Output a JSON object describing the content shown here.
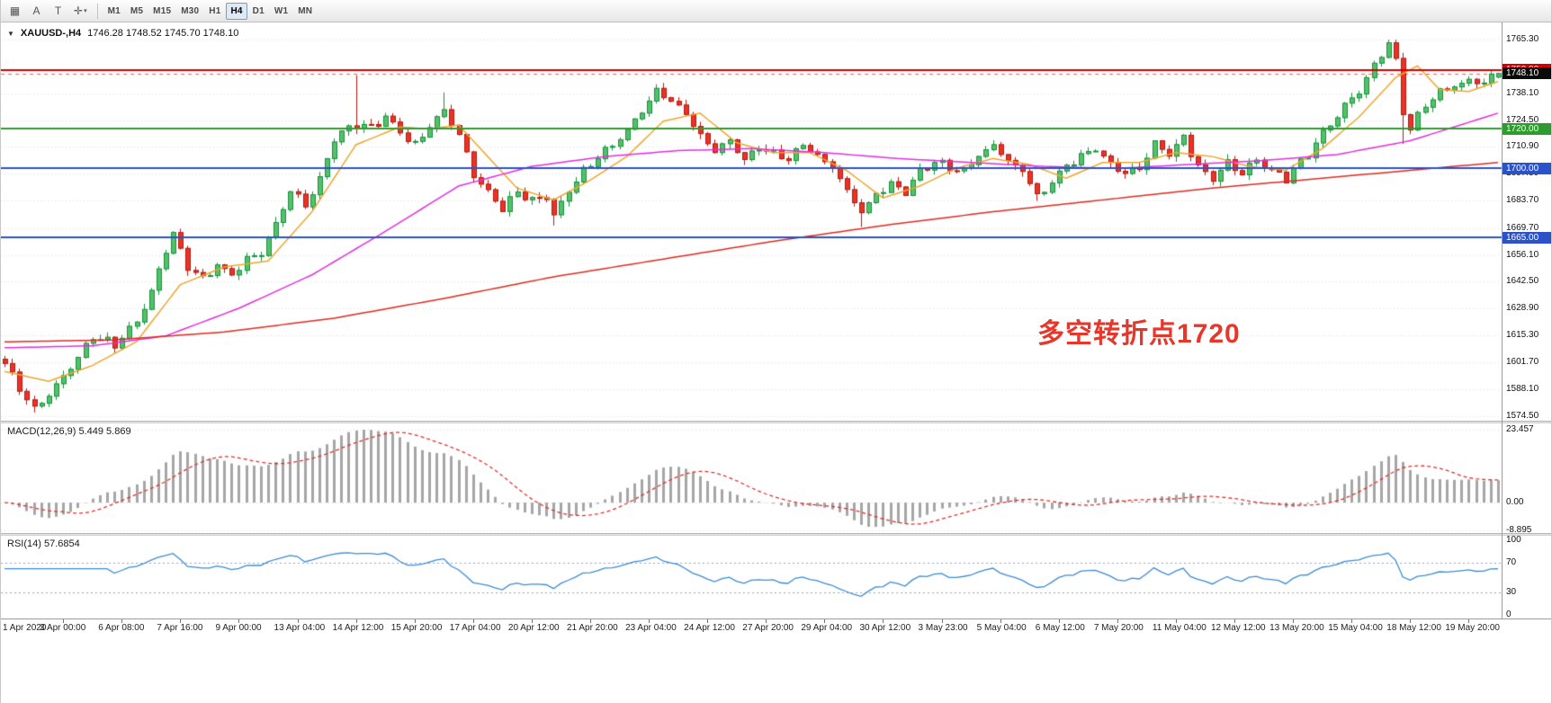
{
  "glyphs": {
    "symbol_dropdown": "▼"
  },
  "toolbar": {
    "left_icons": [
      {
        "name": "chart-grid-icon",
        "glyph": "▦"
      },
      {
        "name": "annotate-a-icon",
        "glyph": "A"
      },
      {
        "name": "text-label-icon",
        "glyph": "T"
      },
      {
        "name": "crosshair-icon",
        "glyph": "✛",
        "caret": "▾"
      }
    ],
    "timeframes": [
      {
        "label": "M1",
        "active": false
      },
      {
        "label": "M5",
        "active": false
      },
      {
        "label": "M15",
        "active": false
      },
      {
        "label": "M30",
        "active": false
      },
      {
        "label": "H1",
        "active": false
      },
      {
        "label": "H4",
        "active": true
      },
      {
        "label": "D1",
        "active": false
      },
      {
        "label": "W1",
        "active": false
      },
      {
        "label": "MN",
        "active": false
      }
    ]
  },
  "chart_data": {
    "type": "candlestick",
    "symbol": "XAUUSD-",
    "timeframe": "H4",
    "title_symbol": "XAUUSD-,H4",
    "title_ohlc": "1746.28 1748.52 1745.70 1748.10",
    "current_ohlc": {
      "open": 1746.28,
      "high": 1748.52,
      "low": 1745.7,
      "close": 1748.1
    },
    "num_candles": 205,
    "price_axis": {
      "min": 1572,
      "max": 1774,
      "ticks": [
        {
          "text": "1765.30",
          "value": 1765.3
        },
        {
          "text": "1738.10",
          "value": 1738.1
        },
        {
          "text": "1724.50",
          "value": 1724.5
        },
        {
          "text": "1710.90",
          "value": 1710.9
        },
        {
          "text": "1697.30",
          "value": 1697.3
        },
        {
          "text": "1683.70",
          "value": 1683.7
        },
        {
          "text": "1669.70",
          "value": 1669.7
        },
        {
          "text": "1656.10",
          "value": 1656.1
        },
        {
          "text": "1642.50",
          "value": 1642.5
        },
        {
          "text": "1628.90",
          "value": 1628.9
        },
        {
          "text": "1615.30",
          "value": 1615.3
        },
        {
          "text": "1601.70",
          "value": 1601.7
        },
        {
          "text": "1588.10",
          "value": 1588.1
        },
        {
          "text": "1574.50",
          "value": 1574.5
        }
      ]
    },
    "x_labels": [
      "1 Apr 2020",
      "3 Apr 00:00",
      "6 Apr 08:00",
      "7 Apr 16:00",
      "9 Apr 00:00",
      "13 Apr 04:00",
      "14 Apr 12:00",
      "15 Apr 20:00",
      "17 Apr 04:00",
      "20 Apr 12:00",
      "21 Apr 20:00",
      "23 Apr 04:00",
      "24 Apr 12:00",
      "27 Apr 20:00",
      "29 Apr 04:00",
      "30 Apr 12:00",
      "3 May 23:00",
      "5 May 04:00",
      "6 May 12:00",
      "7 May 20:00",
      "11 May 04:00",
      "12 May 12:00",
      "13 May 20:00",
      "15 May 04:00",
      "18 May 12:00",
      "19 May 20:00"
    ],
    "close_anchors": [
      [
        0,
        1601
      ],
      [
        2,
        1589
      ],
      [
        4,
        1578
      ],
      [
        6,
        1586
      ],
      [
        9,
        1599
      ],
      [
        12,
        1614
      ],
      [
        15,
        1611
      ],
      [
        18,
        1622
      ],
      [
        20,
        1637
      ],
      [
        22,
        1659
      ],
      [
        23,
        1666
      ],
      [
        25,
        1650
      ],
      [
        27,
        1643
      ],
      [
        29,
        1651
      ],
      [
        31,
        1646
      ],
      [
        33,
        1653
      ],
      [
        35,
        1657
      ],
      [
        37,
        1671
      ],
      [
        39,
        1688
      ],
      [
        41,
        1682
      ],
      [
        43,
        1695
      ],
      [
        45,
        1714
      ],
      [
        47,
        1721
      ],
      [
        48,
        1723
      ],
      [
        50,
        1720
      ],
      [
        52,
        1727
      ],
      [
        54,
        1719
      ],
      [
        56,
        1711
      ],
      [
        58,
        1722
      ],
      [
        60,
        1730
      ],
      [
        62,
        1716
      ],
      [
        64,
        1697
      ],
      [
        66,
        1687
      ],
      [
        68,
        1680
      ],
      [
        70,
        1688
      ],
      [
        72,
        1683
      ],
      [
        74,
        1686
      ],
      [
        75,
        1677
      ],
      [
        77,
        1689
      ],
      [
        79,
        1700
      ],
      [
        81,
        1705
      ],
      [
        83,
        1711
      ],
      [
        85,
        1719
      ],
      [
        87,
        1729
      ],
      [
        89,
        1739
      ],
      [
        91,
        1734
      ],
      [
        93,
        1727
      ],
      [
        95,
        1716
      ],
      [
        97,
        1709
      ],
      [
        99,
        1713
      ],
      [
        101,
        1705
      ],
      [
        103,
        1711
      ],
      [
        105,
        1707
      ],
      [
        107,
        1705
      ],
      [
        109,
        1712
      ],
      [
        111,
        1706
      ],
      [
        113,
        1701
      ],
      [
        115,
        1689
      ],
      [
        117,
        1677
      ],
      [
        119,
        1687
      ],
      [
        121,
        1693
      ],
      [
        123,
        1689
      ],
      [
        125,
        1698
      ],
      [
        127,
        1704
      ],
      [
        129,
        1700
      ],
      [
        131,
        1698
      ],
      [
        133,
        1707
      ],
      [
        135,
        1711
      ],
      [
        137,
        1704
      ],
      [
        139,
        1699
      ],
      [
        141,
        1686
      ],
      [
        143,
        1693
      ],
      [
        145,
        1701
      ],
      [
        147,
        1707
      ],
      [
        149,
        1711
      ],
      [
        151,
        1702
      ],
      [
        153,
        1697
      ],
      [
        155,
        1701
      ],
      [
        157,
        1713
      ],
      [
        159,
        1707
      ],
      [
        161,
        1716
      ],
      [
        163,
        1700
      ],
      [
        165,
        1695
      ],
      [
        167,
        1703
      ],
      [
        169,
        1698
      ],
      [
        171,
        1705
      ],
      [
        173,
        1699
      ],
      [
        175,
        1694
      ],
      [
        177,
        1703
      ],
      [
        179,
        1712
      ],
      [
        181,
        1723
      ],
      [
        183,
        1732
      ],
      [
        185,
        1740
      ],
      [
        187,
        1752
      ],
      [
        188,
        1758
      ],
      [
        189,
        1762
      ],
      [
        190,
        1755
      ],
      [
        191,
        1728
      ],
      [
        192,
        1720
      ],
      [
        193,
        1727
      ],
      [
        194,
        1733
      ],
      [
        196,
        1738
      ],
      [
        198,
        1742
      ],
      [
        200,
        1744
      ],
      [
        202,
        1743
      ],
      [
        203,
        1746
      ],
      [
        204,
        1748
      ]
    ],
    "spikes": [
      {
        "i": 4,
        "low": 1576.2
      },
      {
        "i": 48,
        "high": 1747.2
      },
      {
        "i": 60,
        "high": 1738.5
      },
      {
        "i": 75,
        "low": 1671.0
      },
      {
        "i": 117,
        "low": 1670.3
      },
      {
        "i": 141,
        "low": 1683.5
      },
      {
        "i": 189,
        "high": 1765.3
      },
      {
        "i": 191,
        "low": 1712.4
      }
    ],
    "candle_colors": {
      "up_fill": "#55c06a",
      "up_edge": "#15913c",
      "down_fill": "#ea3326",
      "down_edge": "#b3180f"
    },
    "moving_averages": [
      {
        "name": "ma-fast",
        "color": "#efa52d",
        "anchors": [
          [
            0,
            1597
          ],
          [
            6,
            1592
          ],
          [
            12,
            1600
          ],
          [
            18,
            1612
          ],
          [
            24,
            1641
          ],
          [
            30,
            1650
          ],
          [
            36,
            1653
          ],
          [
            42,
            1678
          ],
          [
            48,
            1712
          ],
          [
            54,
            1721
          ],
          [
            58,
            1720
          ],
          [
            62,
            1722
          ],
          [
            66,
            1706
          ],
          [
            70,
            1690
          ],
          [
            75,
            1684
          ],
          [
            80,
            1694
          ],
          [
            85,
            1706
          ],
          [
            90,
            1724
          ],
          [
            95,
            1728
          ],
          [
            100,
            1713
          ],
          [
            105,
            1708
          ],
          [
            110,
            1708
          ],
          [
            115,
            1699
          ],
          [
            120,
            1685
          ],
          [
            125,
            1691
          ],
          [
            130,
            1700
          ],
          [
            135,
            1705
          ],
          [
            140,
            1702
          ],
          [
            145,
            1695
          ],
          [
            150,
            1703
          ],
          [
            155,
            1703
          ],
          [
            160,
            1708
          ],
          [
            165,
            1706
          ],
          [
            170,
            1701
          ],
          [
            175,
            1699
          ],
          [
            180,
            1710
          ],
          [
            185,
            1726
          ],
          [
            190,
            1746
          ],
          [
            193,
            1752
          ],
          [
            196,
            1740
          ],
          [
            200,
            1739
          ],
          [
            204,
            1744
          ]
        ]
      },
      {
        "name": "ma-mid",
        "color": "#e22de2",
        "anchors": [
          [
            0,
            1609
          ],
          [
            12,
            1610
          ],
          [
            22,
            1615
          ],
          [
            32,
            1629
          ],
          [
            42,
            1646
          ],
          [
            52,
            1668
          ],
          [
            62,
            1691
          ],
          [
            72,
            1701
          ],
          [
            82,
            1706
          ],
          [
            92,
            1709
          ],
          [
            102,
            1710
          ],
          [
            112,
            1708
          ],
          [
            122,
            1705
          ],
          [
            132,
            1703
          ],
          [
            142,
            1701
          ],
          [
            152,
            1700
          ],
          [
            162,
            1702
          ],
          [
            172,
            1704
          ],
          [
            182,
            1707
          ],
          [
            192,
            1714
          ],
          [
            204,
            1728
          ]
        ]
      },
      {
        "name": "ma-slow",
        "color": "#e02a20",
        "anchors": [
          [
            0,
            1612
          ],
          [
            15,
            1613
          ],
          [
            30,
            1617
          ],
          [
            45,
            1624
          ],
          [
            60,
            1634
          ],
          [
            75,
            1645
          ],
          [
            90,
            1654
          ],
          [
            105,
            1663
          ],
          [
            120,
            1671
          ],
          [
            135,
            1678
          ],
          [
            150,
            1684
          ],
          [
            165,
            1690
          ],
          [
            180,
            1695
          ],
          [
            195,
            1700
          ],
          [
            204,
            1703
          ]
        ]
      }
    ],
    "horizontal_lines": [
      {
        "value": 1750.0,
        "tag": "1750.00",
        "color": "#d40000",
        "style": "solid"
      },
      {
        "value": 1720.0,
        "tag": "1720.00",
        "color": "#2e9b2e",
        "style": "solid"
      },
      {
        "value": 1700.0,
        "tag": "1700.00",
        "color": "#2b52c9",
        "style": "solid"
      },
      {
        "value": 1665.0,
        "tag": "1665.00",
        "color": "#2b52c9",
        "style": "solid"
      }
    ],
    "current_price_tag": {
      "text": "1748.10",
      "value": 1748.1,
      "bg": "#0a0a0a"
    },
    "annotation": {
      "text": "多空转折点1720",
      "color": "#e7372b"
    },
    "macd": {
      "label": "MACD(12,26,9) 5.449 5.869",
      "fast": 12,
      "slow": 26,
      "signal_period": 9,
      "main_value": 5.449,
      "signal_value": 5.869,
      "axis_ticks": [
        {
          "text": "23.457",
          "value": 23.457
        },
        {
          "text": "0.00",
          "value": 0
        },
        {
          "text": "-8.895",
          "value": -8.895
        }
      ],
      "range": [
        -9.8,
        25.5
      ],
      "histogram_color": "#a6a6a6",
      "signal_color": "#e0312a"
    },
    "rsi": {
      "label": "RSI(14) 57.6854",
      "period": 14,
      "value": 57.6854,
      "axis_ticks": [
        {
          "text": "100",
          "value": 100
        },
        {
          "text": "70",
          "value": 70
        },
        {
          "text": "30",
          "value": 30
        },
        {
          "text": "0",
          "value": 0
        }
      ],
      "levels": [
        70,
        30
      ],
      "line_color": "#3d8bd4",
      "range": [
        0,
        100
      ]
    }
  }
}
